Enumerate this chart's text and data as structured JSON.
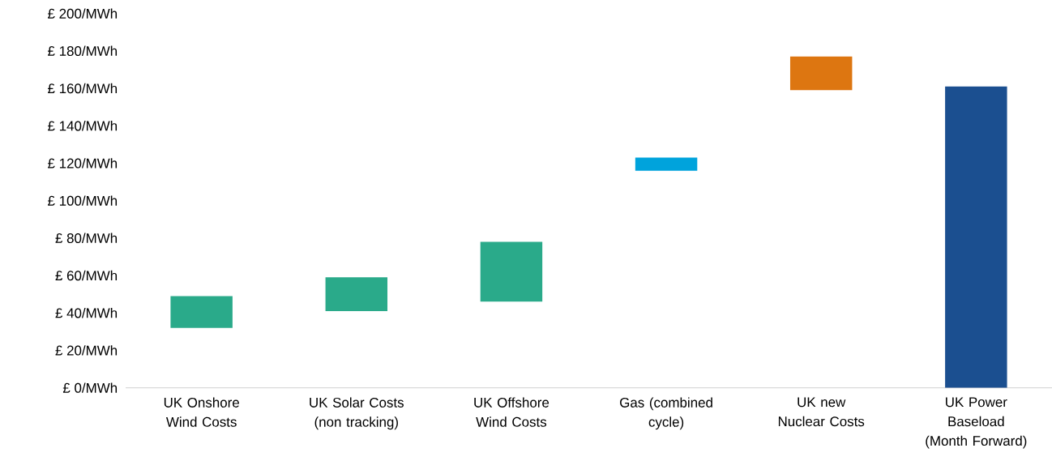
{
  "chart_data": {
    "type": "bar",
    "categories": [
      "UK Onshore Wind Costs",
      "UK Solar Costs (non tracking)",
      "UK Offshore Wind Costs",
      "Gas (combined cycle)",
      "UK new Nuclear Costs",
      "UK Power Baseload (Month Forward)"
    ],
    "base": [
      32,
      41,
      46,
      116,
      159,
      0
    ],
    "values": [
      17,
      18,
      32,
      7,
      18,
      161
    ],
    "colors": [
      "#2aaa8a",
      "#2aaa8a",
      "#2aaa8a",
      "#00a3dc",
      "#dd7611",
      "#1b4f90"
    ],
    "ylim": [
      0,
      200
    ],
    "yticks": [
      {
        "value": 0,
        "label": "£ 0/MWh"
      },
      {
        "value": 20,
        "label": "£ 20/MWh"
      },
      {
        "value": 40,
        "label": "£ 40/MWh"
      },
      {
        "value": 60,
        "label": "£ 60/MWh"
      },
      {
        "value": 80,
        "label": "£ 80/MWh"
      },
      {
        "value": 100,
        "label": "£ 100/MWh"
      },
      {
        "value": 120,
        "label": "£ 120/MWh"
      },
      {
        "value": 140,
        "label": "£ 140/MWh"
      },
      {
        "value": 160,
        "label": "£ 160/MWh"
      },
      {
        "value": 180,
        "label": "£ 180/MWh"
      },
      {
        "value": 200,
        "label": "£ 200/MWh"
      }
    ]
  }
}
